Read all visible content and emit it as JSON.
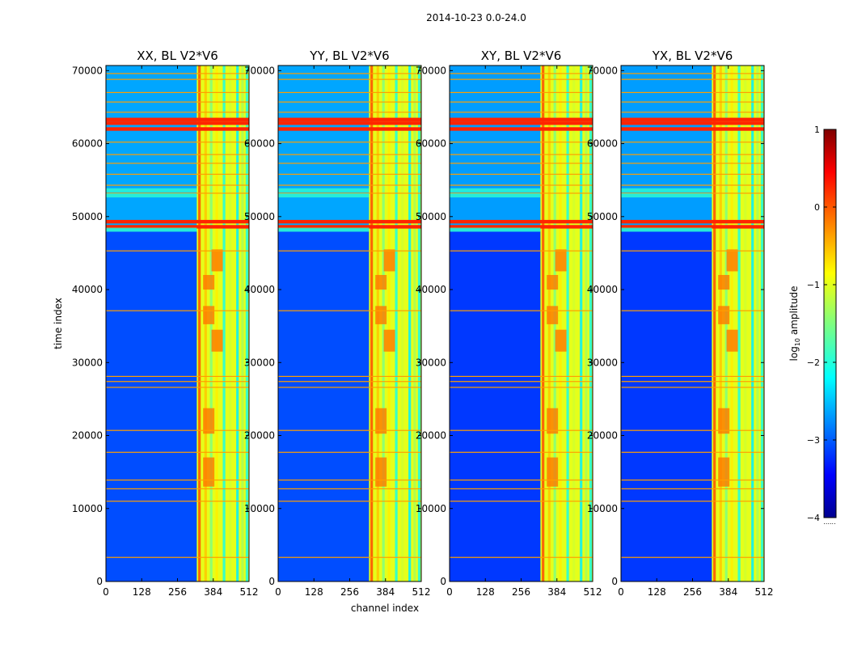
{
  "figure": {
    "suptitle": "2014-10-23 0.0-24.0",
    "xlabel": "channel index",
    "ylabel": "time index",
    "colorbar_label": "log10 amplitude",
    "colorbar_label_main": "log",
    "colorbar_label_sub": "10",
    "colorbar_label_rest": " amplitude",
    "colorbar_ticks": [
      1,
      0,
      -1,
      -2,
      -3,
      -4
    ],
    "colorbar_tick_labels": [
      "1",
      "0",
      "−1",
      "−2",
      "−3",
      "−4"
    ],
    "colorbar_range": [
      -4,
      1
    ],
    "colormap": "jet"
  },
  "chart_data": [
    {
      "type": "heatmap",
      "title": "XX, BL V2*V6",
      "xlabel": "",
      "ylabel": "time index",
      "xlim": [
        0,
        512
      ],
      "ylim": [
        0,
        70700
      ],
      "xticks": [
        0,
        128,
        256,
        384,
        512
      ],
      "yticks": [
        0,
        10000,
        20000,
        30000,
        40000,
        50000,
        60000,
        70000
      ],
      "background_log10_amplitude": -3.0,
      "band_channels": [
        [
          325,
          512
        ]
      ],
      "strong_flag_rows": [
        48600,
        49300,
        62000,
        62800,
        63300
      ]
    },
    {
      "type": "heatmap",
      "title": "YY, BL V2*V6",
      "xlabel": "channel index",
      "ylabel": "",
      "xlim": [
        0,
        512
      ],
      "ylim": [
        0,
        70700
      ],
      "xticks": [
        0,
        128,
        256,
        384,
        512
      ],
      "yticks": [
        0,
        10000,
        20000,
        30000,
        40000,
        50000,
        60000,
        70000
      ],
      "background_log10_amplitude": -3.0,
      "band_channels": [
        [
          325,
          512
        ]
      ],
      "strong_flag_rows": [
        48600,
        49300,
        62000,
        62800,
        63300
      ]
    },
    {
      "type": "heatmap",
      "title": "XY, BL V2*V6",
      "xlabel": "",
      "ylabel": "",
      "xlim": [
        0,
        512
      ],
      "ylim": [
        0,
        70700
      ],
      "xticks": [
        0,
        128,
        256,
        384,
        512
      ],
      "yticks": [
        0,
        10000,
        20000,
        30000,
        40000,
        50000,
        60000,
        70000
      ],
      "background_log10_amplitude": -3.1,
      "band_channels": [
        [
          325,
          512
        ]
      ],
      "strong_flag_rows": [
        48600,
        49300,
        62000,
        62800,
        63300
      ]
    },
    {
      "type": "heatmap",
      "title": "YX, BL V2*V6",
      "xlabel": "",
      "ylabel": "",
      "xlim": [
        0,
        512
      ],
      "ylim": [
        0,
        70700
      ],
      "xticks": [
        0,
        128,
        256,
        384,
        512
      ],
      "yticks": [
        0,
        10000,
        20000,
        30000,
        40000,
        50000,
        60000,
        70000
      ],
      "background_log10_amplitude": -3.1,
      "band_channels": [
        [
          325,
          512
        ]
      ],
      "strong_flag_rows": [
        48600,
        49300,
        62000,
        62800,
        63300
      ]
    }
  ]
}
